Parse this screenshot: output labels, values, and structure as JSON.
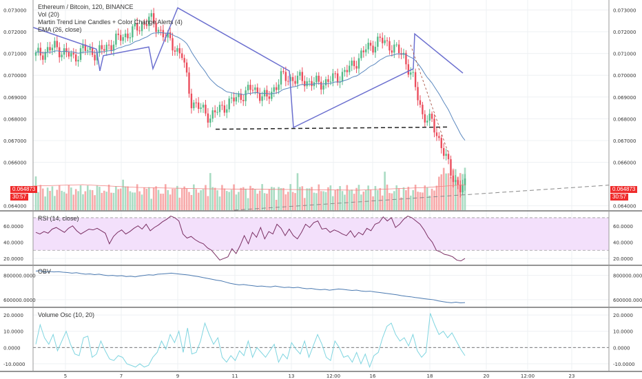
{
  "legend": {
    "title": "Ethereum / Bitcoin, 120, BINANCE",
    "vol": "Vol (20)",
    "martin": "Martin Trend Line Candles + Color Change Alerts (4)",
    "ema": "EMA (26, close)"
  },
  "price_tag": {
    "value": "0.064873",
    "countdown": "30:57"
  },
  "colors": {
    "up": "#53b987",
    "down": "#eb4d5c",
    "bluegray": "#6b6fcf",
    "ema": "#5b88bf",
    "rsi_bg": "#f3e0fb",
    "rsi_line": "#7a2f63",
    "obv": "#4a79b0",
    "vosc": "#7fd5e0"
  },
  "chart_data": [
    {
      "type": "candlestick",
      "title": "Ethereum / Bitcoin, 120, BINANCE",
      "y_ticks": [
        "0.073000",
        "0.072000",
        "0.071000",
        "0.070000",
        "0.069000",
        "0.068000",
        "0.067000",
        "0.066000",
        "0.064000"
      ],
      "ylim": [
        0.0638,
        0.0733
      ],
      "x_ticks": [
        "5",
        "7",
        "9",
        "11",
        "13",
        "12:00",
        "16",
        "18",
        "20",
        "12:00",
        "23"
      ],
      "last_price": 0.064873,
      "series": [
        {
          "name": "Vol (20)",
          "type": "bar"
        },
        {
          "name": "Martin Trend Line Candles + Color Change Alerts (4)",
          "type": "line"
        },
        {
          "name": "EMA (26, close)",
          "type": "line"
        }
      ]
    },
    {
      "type": "line",
      "title": "RSI (14, close)",
      "y_ticks": [
        "60.0000",
        "40.0000",
        "20.0000"
      ],
      "ylim": [
        15,
        75
      ],
      "bands": [
        30,
        70
      ],
      "values": [
        52,
        50,
        53,
        51,
        56,
        58,
        55,
        52,
        57,
        60,
        54,
        50,
        53,
        56,
        55,
        57,
        54,
        51,
        38,
        47,
        52,
        55,
        50,
        53,
        57,
        60,
        56,
        62,
        54,
        58,
        61,
        65,
        68,
        72,
        70,
        66,
        50,
        45,
        47,
        43,
        40,
        38,
        33,
        30,
        24,
        18,
        20,
        22,
        32,
        26,
        36,
        48,
        38,
        52,
        46,
        58,
        44,
        53,
        50,
        62,
        57,
        48,
        56,
        48,
        44,
        52,
        62,
        58,
        64,
        66,
        56,
        57,
        52,
        55,
        53,
        50,
        48,
        54,
        46,
        52,
        49,
        57,
        54,
        62,
        64,
        71,
        66,
        70,
        58,
        62,
        68,
        72,
        70,
        66,
        62,
        55,
        46,
        40,
        30,
        28,
        25,
        24,
        22,
        18,
        17,
        20
      ]
    },
    {
      "type": "line",
      "title": "OBV",
      "y_ticks": [
        "800000.0000",
        "600000.0000"
      ],
      "ylim": [
        560000,
        860000
      ],
      "values": [
        835000,
        838000,
        826000,
        832000,
        828000,
        830000,
        826000,
        823000,
        818000,
        822000,
        815000,
        810000,
        812000,
        806000,
        810000,
        803000,
        798000,
        800000,
        795000,
        798000,
        790000,
        793000,
        788000,
        795000,
        800000,
        805000,
        802000,
        810000,
        812000,
        815000,
        818000,
        814000,
        810000,
        806000,
        802000,
        795000,
        790000,
        782000,
        775000,
        768000,
        760000,
        755000,
        745000,
        735000,
        728000,
        722000,
        725000,
        719000,
        715000,
        710000,
        712000,
        708000,
        705000,
        712000,
        706000,
        700000,
        703000,
        698000,
        702000,
        695000,
        690000,
        692000,
        686000,
        682000,
        685000,
        678000,
        683000,
        688000,
        685000,
        680000,
        676000,
        679000,
        672000,
        668000,
        670000,
        664000,
        660000,
        655000,
        650000,
        645000,
        640000,
        633000,
        628000,
        624000,
        618000,
        614000,
        608000,
        604000,
        600000,
        591000,
        585000,
        579000,
        575000,
        580000,
        574000,
        576000
      ]
    },
    {
      "type": "line",
      "title": "Volume Osc (10, 20)",
      "y_ticks": [
        "20.0000",
        "10.0000",
        "0.0000",
        "-10.0000"
      ],
      "ylim": [
        -13,
        23
      ],
      "values": [
        2,
        14,
        6,
        2,
        8,
        -2,
        4,
        10,
        2,
        -4,
        -5,
        6,
        7,
        -6,
        -4,
        4,
        -2,
        -7,
        -8,
        -5,
        -6,
        -10,
        -11,
        -12,
        -10,
        -12,
        -11,
        -6,
        -3,
        4,
        -1,
        8,
        3,
        10,
        -3,
        12,
        -4,
        -3,
        4,
        15,
        8,
        2,
        6,
        -6,
        -9,
        -5,
        -8,
        -2,
        -5,
        4,
        -6,
        0,
        -3,
        -6,
        -2,
        2,
        -9,
        -4,
        -7,
        3,
        -1,
        -4,
        4,
        -6,
        1,
        8,
        2,
        -6,
        -8,
        4,
        0,
        -6,
        -5,
        -9,
        -3,
        -10,
        -4,
        -12,
        -5,
        -3,
        6,
        13,
        15,
        8,
        4,
        6,
        1,
        8,
        -2,
        -6,
        -3,
        21,
        14,
        8,
        10,
        6,
        9,
        4,
        -1,
        -5
      ]
    }
  ]
}
